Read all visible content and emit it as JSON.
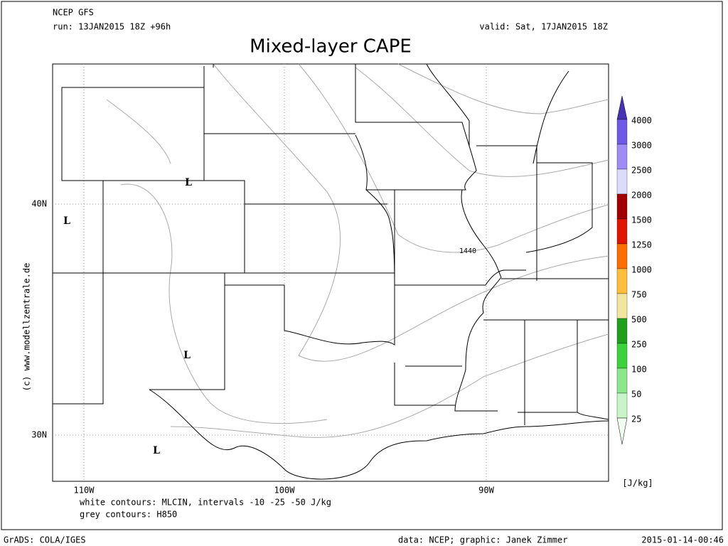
{
  "header": {
    "model": "NCEP GFS",
    "run": "run: 13JAN2015 18Z +96h",
    "valid": "valid: Sat, 17JAN2015 18Z",
    "title": "Mixed-layer CAPE"
  },
  "map": {
    "lat_labels": [
      "40N",
      "30N"
    ],
    "lon_labels": [
      "110W",
      "100W",
      "90W"
    ],
    "lows": [
      "L",
      "L",
      "L",
      "L"
    ],
    "contour_label": "1440",
    "watermark": "(c) www.modellzentrale.de"
  },
  "notes": [
    "white contours: MLCIN, intervals -10 -25 -50 J/kg",
    "grey contours: H850"
  ],
  "colorbar": {
    "unit": "[J/kg]",
    "bottom_color": "#f0fcf0",
    "levels": [
      {
        "label": "4000",
        "color": "#4632b4"
      },
      {
        "label": "3000",
        "color": "#6e5ae6"
      },
      {
        "label": "2500",
        "color": "#a08cf5"
      },
      {
        "label": "2000",
        "color": "#dcdcfa"
      },
      {
        "label": "1500",
        "color": "#a00000"
      },
      {
        "label": "1250",
        "color": "#e01400"
      },
      {
        "label": "1000",
        "color": "#ff6e00"
      },
      {
        "label": "750",
        "color": "#ffbe3c"
      },
      {
        "label": "500",
        "color": "#f0e6a0"
      },
      {
        "label": "250",
        "color": "#1ea01e"
      },
      {
        "label": "100",
        "color": "#3cd23c"
      },
      {
        "label": "50",
        "color": "#8ce68c"
      },
      {
        "label": "25",
        "color": "#c8f5c8"
      }
    ]
  },
  "footer": {
    "left": "GrADS: COLA/IGES",
    "center": "data: NCEP; graphic: Janek Zimmer",
    "right": "2015-01-14-00:46"
  }
}
